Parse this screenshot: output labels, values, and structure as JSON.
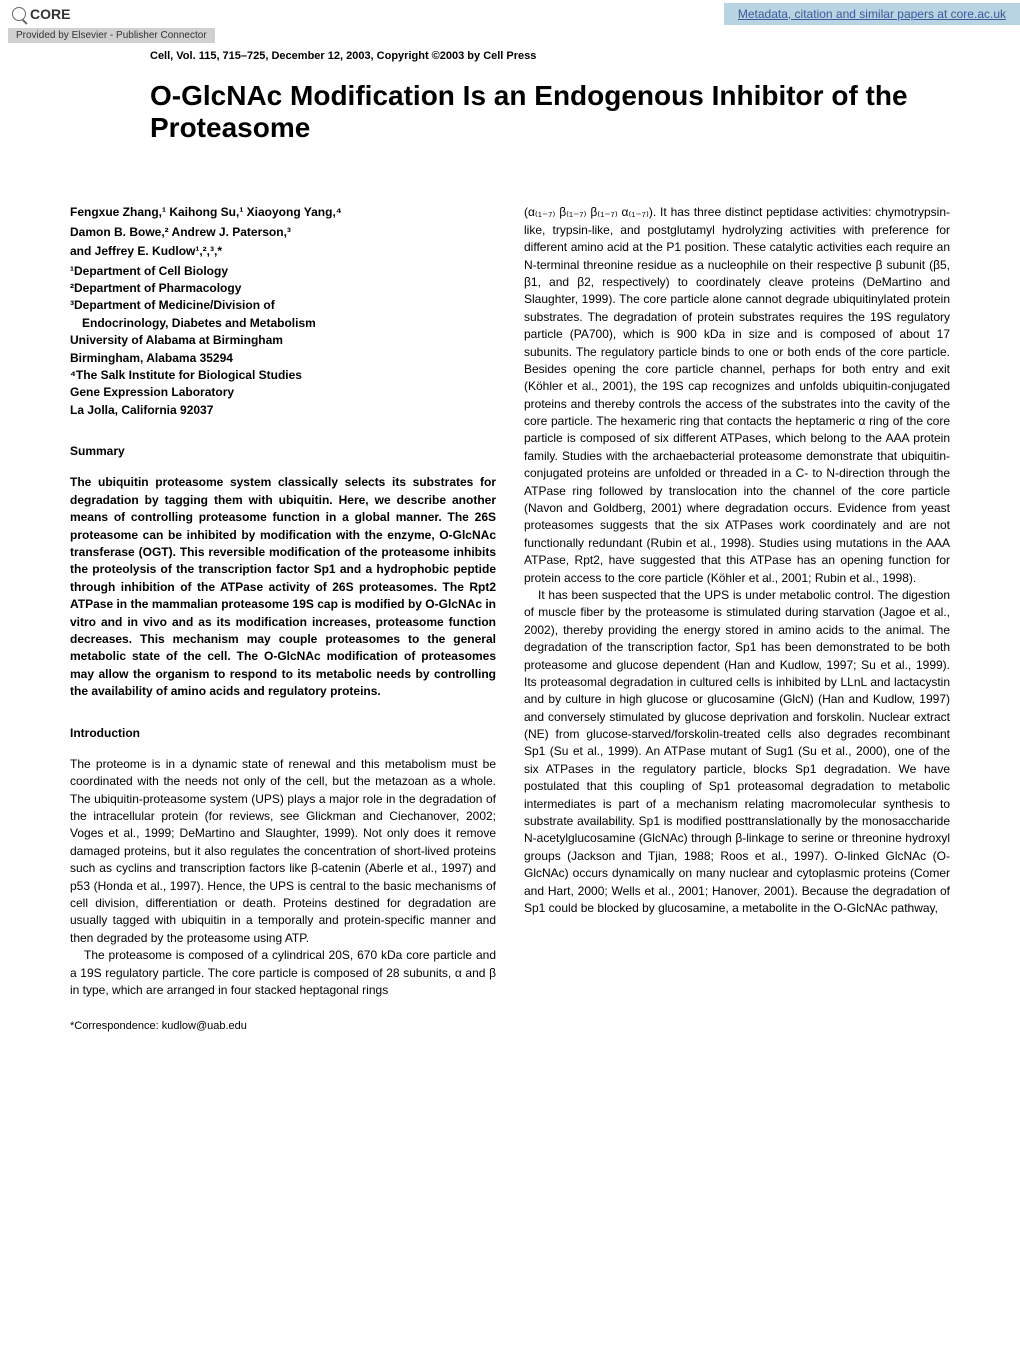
{
  "core": {
    "logo_text": "CORE",
    "link_text": "Metadata, citation and similar papers at core.ac.uk",
    "provider": "Provided by Elsevier - Publisher Connector"
  },
  "citation": "Cell, Vol. 115, 715–725, December 12, 2003, Copyright ©2003 by Cell Press",
  "title": "O-GlcNAc Modification Is an Endogenous Inhibitor of the Proteasome",
  "authors_line1": "Fengxue Zhang,¹ Kaihong Su,¹ Xiaoyong Yang,⁴",
  "authors_line2": "Damon B. Bowe,² Andrew J. Paterson,³",
  "authors_line3": "and Jeffrey E. Kudlow¹,²,³,*",
  "affiliations": [
    "¹Department of Cell Biology",
    "²Department of Pharmacology",
    "³Department of Medicine/Division of",
    "  Endocrinology, Diabetes and Metabolism",
    "University of Alabama at Birmingham",
    "Birmingham, Alabama 35294",
    "⁴The Salk Institute for Biological Studies",
    "Gene Expression Laboratory",
    "La Jolla, California 92037"
  ],
  "summary_heading": "Summary",
  "summary_text": "The ubiquitin proteasome system classically selects its substrates for degradation by tagging them with ubiquitin. Here, we describe another means of controlling proteasome function in a global manner. The 26S proteasome can be inhibited by modification with the enzyme, O-GlcNAc transferase (OGT). This reversible modification of the proteasome inhibits the proteolysis of the transcription factor Sp1 and a hydrophobic peptide through inhibition of the ATPase activity of 26S proteasomes. The Rpt2 ATPase in the mammalian proteasome 19S cap is modified by O-GlcNAc in vitro and in vivo and as its modification increases, proteasome function decreases. This mechanism may couple proteasomes to the general metabolic state of the cell. The O-GlcNAc modification of proteasomes may allow the organism to respond to its metabolic needs by controlling the availability of amino acids and regulatory proteins.",
  "intro_heading": "Introduction",
  "intro_p1": "The proteome is in a dynamic state of renewal and this metabolism must be coordinated with the needs not only of the cell, but the metazoan as a whole. The ubiquitin-proteasome system (UPS) plays a major role in the degradation of the intracellular protein (for reviews, see Glickman and Ciechanover, 2002; Voges et al., 1999; DeMartino and Slaughter, 1999). Not only does it remove damaged proteins, but it also regulates the concentration of short-lived proteins such as cyclins and transcription factors like β-catenin (Aberle et al., 1997) and p53 (Honda et al., 1997). Hence, the UPS is central to the basic mechanisms of cell division, differentiation or death. Proteins destined for degradation are usually tagged with ubiquitin in a temporally and protein-specific manner and then degraded by the proteasome using ATP.",
  "intro_p2": "The proteasome is composed of a cylindrical 20S, 670 kDa core particle and a 19S regulatory particle. The core particle is composed of 28 subunits, α and β in type, which are arranged in four stacked heptagonal rings",
  "correspondence": "*Correspondence: kudlow@uab.edu",
  "col2_p1": "(α₍₁₋₇₎ β₍₁₋₇₎ β₍₁₋₇₎ α₍₁₋₇₎). It has three distinct peptidase activities: chymotrypsin-like, trypsin-like, and postglutamyl hydrolyzing activities with preference for different amino acid at the P1 position. These catalytic activities each require an N-terminal threonine residue as a nucleophile on their respective β subunit (β5, β1, and β2, respectively) to coordinately cleave proteins (DeMartino and Slaughter, 1999). The core particle alone cannot degrade ubiquitinylated protein substrates. The degradation of protein substrates requires the 19S regulatory particle (PA700), which is 900 kDa in size and is composed of about 17 subunits. The regulatory particle binds to one or both ends of the core particle. Besides opening the core particle channel, perhaps for both entry and exit (Köhler et al., 2001), the 19S cap recognizes and unfolds ubiquitin-conjugated proteins and thereby controls the access of the substrates into the cavity of the core particle. The hexameric ring that contacts the heptameric α ring of the core particle is composed of six different ATPases, which belong to the AAA protein family. Studies with the archaebacterial proteasome demonstrate that ubiquitin-conjugated proteins are unfolded or threaded in a C- to N-direction through the ATPase ring followed by translocation into the channel of the core particle (Navon and Goldberg, 2001) where degradation occurs. Evidence from yeast proteasomes suggests that the six ATPases work coordinately and are not functionally redundant (Rubin et al., 1998). Studies using mutations in the AAA ATPase, Rpt2, have suggested that this ATPase has an opening function for protein access to the core particle (Köhler et al., 2001; Rubin et al., 1998).",
  "col2_p2": "It has been suspected that the UPS is under metabolic control. The digestion of muscle fiber by the proteasome is stimulated during starvation (Jagoe et al., 2002), thereby providing the energy stored in amino acids to the animal. The degradation of the transcription factor, Sp1 has been demonstrated to be both proteasome and glucose dependent (Han and Kudlow, 1997; Su et al., 1999). Its proteasomal degradation in cultured cells is inhibited by LLnL and lactacystin and by culture in high glucose or glucosamine (GlcN) (Han and Kudlow, 1997) and conversely stimulated by glucose deprivation and forskolin. Nuclear extract (NE) from glucose-starved/forskolin-treated cells also degrades recombinant Sp1 (Su et al., 1999). An ATPase mutant of Sug1 (Su et al., 2000), one of the six ATPases in the regulatory particle, blocks Sp1 degradation. We have postulated that this coupling of Sp1 proteasomal degradation to metabolic intermediates is part of a mechanism relating macromolecular synthesis to substrate availability. Sp1 is modified posttranslationally by the monosaccharide N-acetylglucosamine (GlcNAc) through β-linkage to serine or threonine hydroxyl groups (Jackson and Tjian, 1988; Roos et al., 1997). O-linked GlcNAc (O-GlcNAc) occurs dynamically on many nuclear and cytoplasmic proteins (Comer and Hart, 2000; Wells et al., 2001; Hanover, 2001). Because the degradation of Sp1 could be blocked by glucosamine, a metabolite in the O-GlcNAc pathway,"
}
